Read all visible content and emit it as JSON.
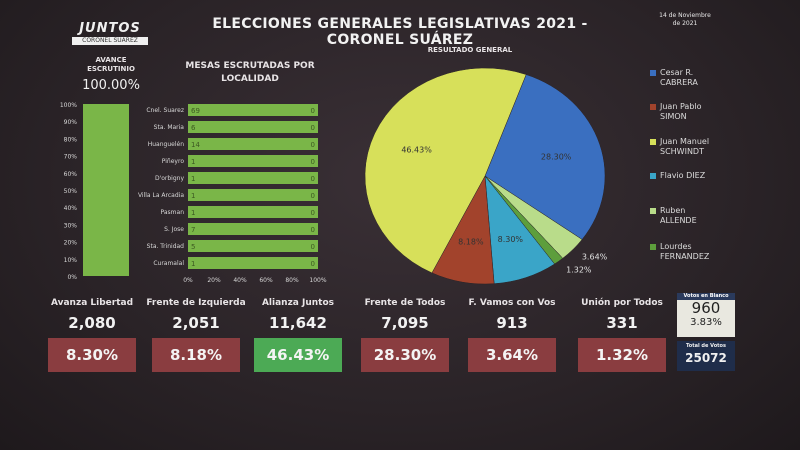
{
  "header": {
    "logo_top": "JUNTOS",
    "logo_bottom": "CORONEL SUÁREZ",
    "title": "ELECCIONES GENERALES LEGISLATIVAS 2021 - CORONEL SUÁREZ",
    "date_line1": "14 de Noviembre",
    "date_line2": "de 2021"
  },
  "avance": {
    "title_line1": "AVANCE",
    "title_line2": "ESCRUTINIO",
    "value": "100.00%",
    "fraction": 1.0,
    "ticks": [
      "100%",
      "90%",
      "80%",
      "70%",
      "60%",
      "50%",
      "40%",
      "30%",
      "20%",
      "10%",
      "0%"
    ]
  },
  "mesas": {
    "title_line1": "MESAS ESCRUTADAS POR",
    "title_line2": "LOCALIDAD",
    "x_ticks": [
      "0%",
      "20%",
      "40%",
      "60%",
      "80%",
      "100%"
    ]
  },
  "resultado": {
    "title": "RESULTADO GENERAL"
  },
  "blanco": {
    "label": "Votos en Blanco",
    "value": "960",
    "percent": "3.83%"
  },
  "total": {
    "label": "Total de Votos",
    "value": "25072"
  },
  "colors": {
    "pct_red": "#8a3d40",
    "pct_green": "#4caa55",
    "bar_green": "#7ab648",
    "pie_blue": "#3a6fc0",
    "pie_yellow": "#d7e05a",
    "pie_brown": "#a2432c",
    "pie_cyan": "#3aa5c8",
    "pie_lightgreen": "#b9dc8a",
    "pie_darkgreen": "#5d9e3c"
  },
  "chart_data": [
    {
      "type": "bar",
      "orientation": "vertical",
      "title": "AVANCE ESCRUTINIO",
      "categories": [
        ""
      ],
      "values": [
        100
      ],
      "ylim": [
        0,
        100
      ]
    },
    {
      "type": "bar",
      "orientation": "horizontal",
      "title": "MESAS ESCRUTADAS POR LOCALIDAD",
      "categories": [
        "Cnel. Suarez",
        "Sta. Maria",
        "Huanguelén",
        "Piñeyro",
        "D'orbigny",
        "Villa La Arcadia",
        "Pasman",
        "S. Jose",
        "Sta. Trinidad",
        "Curamalal"
      ],
      "left_labels": [
        "69",
        "6",
        "14",
        "1",
        "1",
        "1",
        "1",
        "7",
        "5",
        "1"
      ],
      "right_labels": [
        "0",
        "0",
        "0",
        "0",
        "0",
        "0",
        "0",
        "0",
        "0",
        "0"
      ],
      "values": [
        100,
        100,
        100,
        100,
        100,
        100,
        100,
        100,
        100,
        100
      ],
      "xlim": [
        0,
        100
      ]
    },
    {
      "type": "pie",
      "title": "RESULTADO GENERAL",
      "series": [
        {
          "name": "Cesar R. CABRERA",
          "name_line1": "Cesar R.",
          "name_line2": "CABRERA",
          "value": 28.3,
          "label": "28.30%",
          "color": "#3a6fc0"
        },
        {
          "name": "Ruben ALLENDE",
          "name_line1": "Ruben",
          "name_line2": "ALLENDE",
          "value": 3.64,
          "label": "3.64%",
          "color": "#b9dc8a"
        },
        {
          "name": "Lourdes FERNANDEZ",
          "name_line1": "Lourdes",
          "name_line2": "FERNANDEZ",
          "value": 1.32,
          "label": "1.32%",
          "color": "#5d9e3c"
        },
        {
          "name": "Flavio DIEZ",
          "name_line1": "Flavio DIEZ",
          "name_line2": "",
          "value": 8.3,
          "label": "8.30%",
          "color": "#3aa5c8"
        },
        {
          "name": "Juan Pablo SIMON",
          "name_line1": "Juan Pablo",
          "name_line2": "SIMON",
          "value": 8.18,
          "label": "8.18%",
          "color": "#a2432c"
        },
        {
          "name": "Juan Manuel SCHWINDT",
          "name_line1": "Juan Manuel",
          "name_line2": "SCHWINDT",
          "value": 46.43,
          "label": "46.43%",
          "color": "#d7e05a"
        }
      ],
      "legend_colors": [
        "#3a6fc0",
        "#a2432c",
        "#d7e05a",
        "#3aa5c8",
        "#b9dc8a",
        "#5d9e3c"
      ]
    },
    {
      "type": "table",
      "title": "Resultados por partido",
      "rows": [
        {
          "party": "Avanza Libertad",
          "votes": "2,080",
          "percent": "8.30%"
        },
        {
          "party": "Frente de Izquierda",
          "votes": "2,051",
          "percent": "8.18%"
        },
        {
          "party": "Alianza Juntos",
          "votes": "11,642",
          "percent": "46.43%",
          "highlight": true
        },
        {
          "party": "Frente de Todos",
          "votes": "7,095",
          "percent": "28.30%"
        },
        {
          "party": "F. Vamos con Vos",
          "votes": "913",
          "percent": "3.64%"
        },
        {
          "party": "Unión por Todos",
          "votes": "331",
          "percent": "1.32%"
        }
      ]
    }
  ]
}
